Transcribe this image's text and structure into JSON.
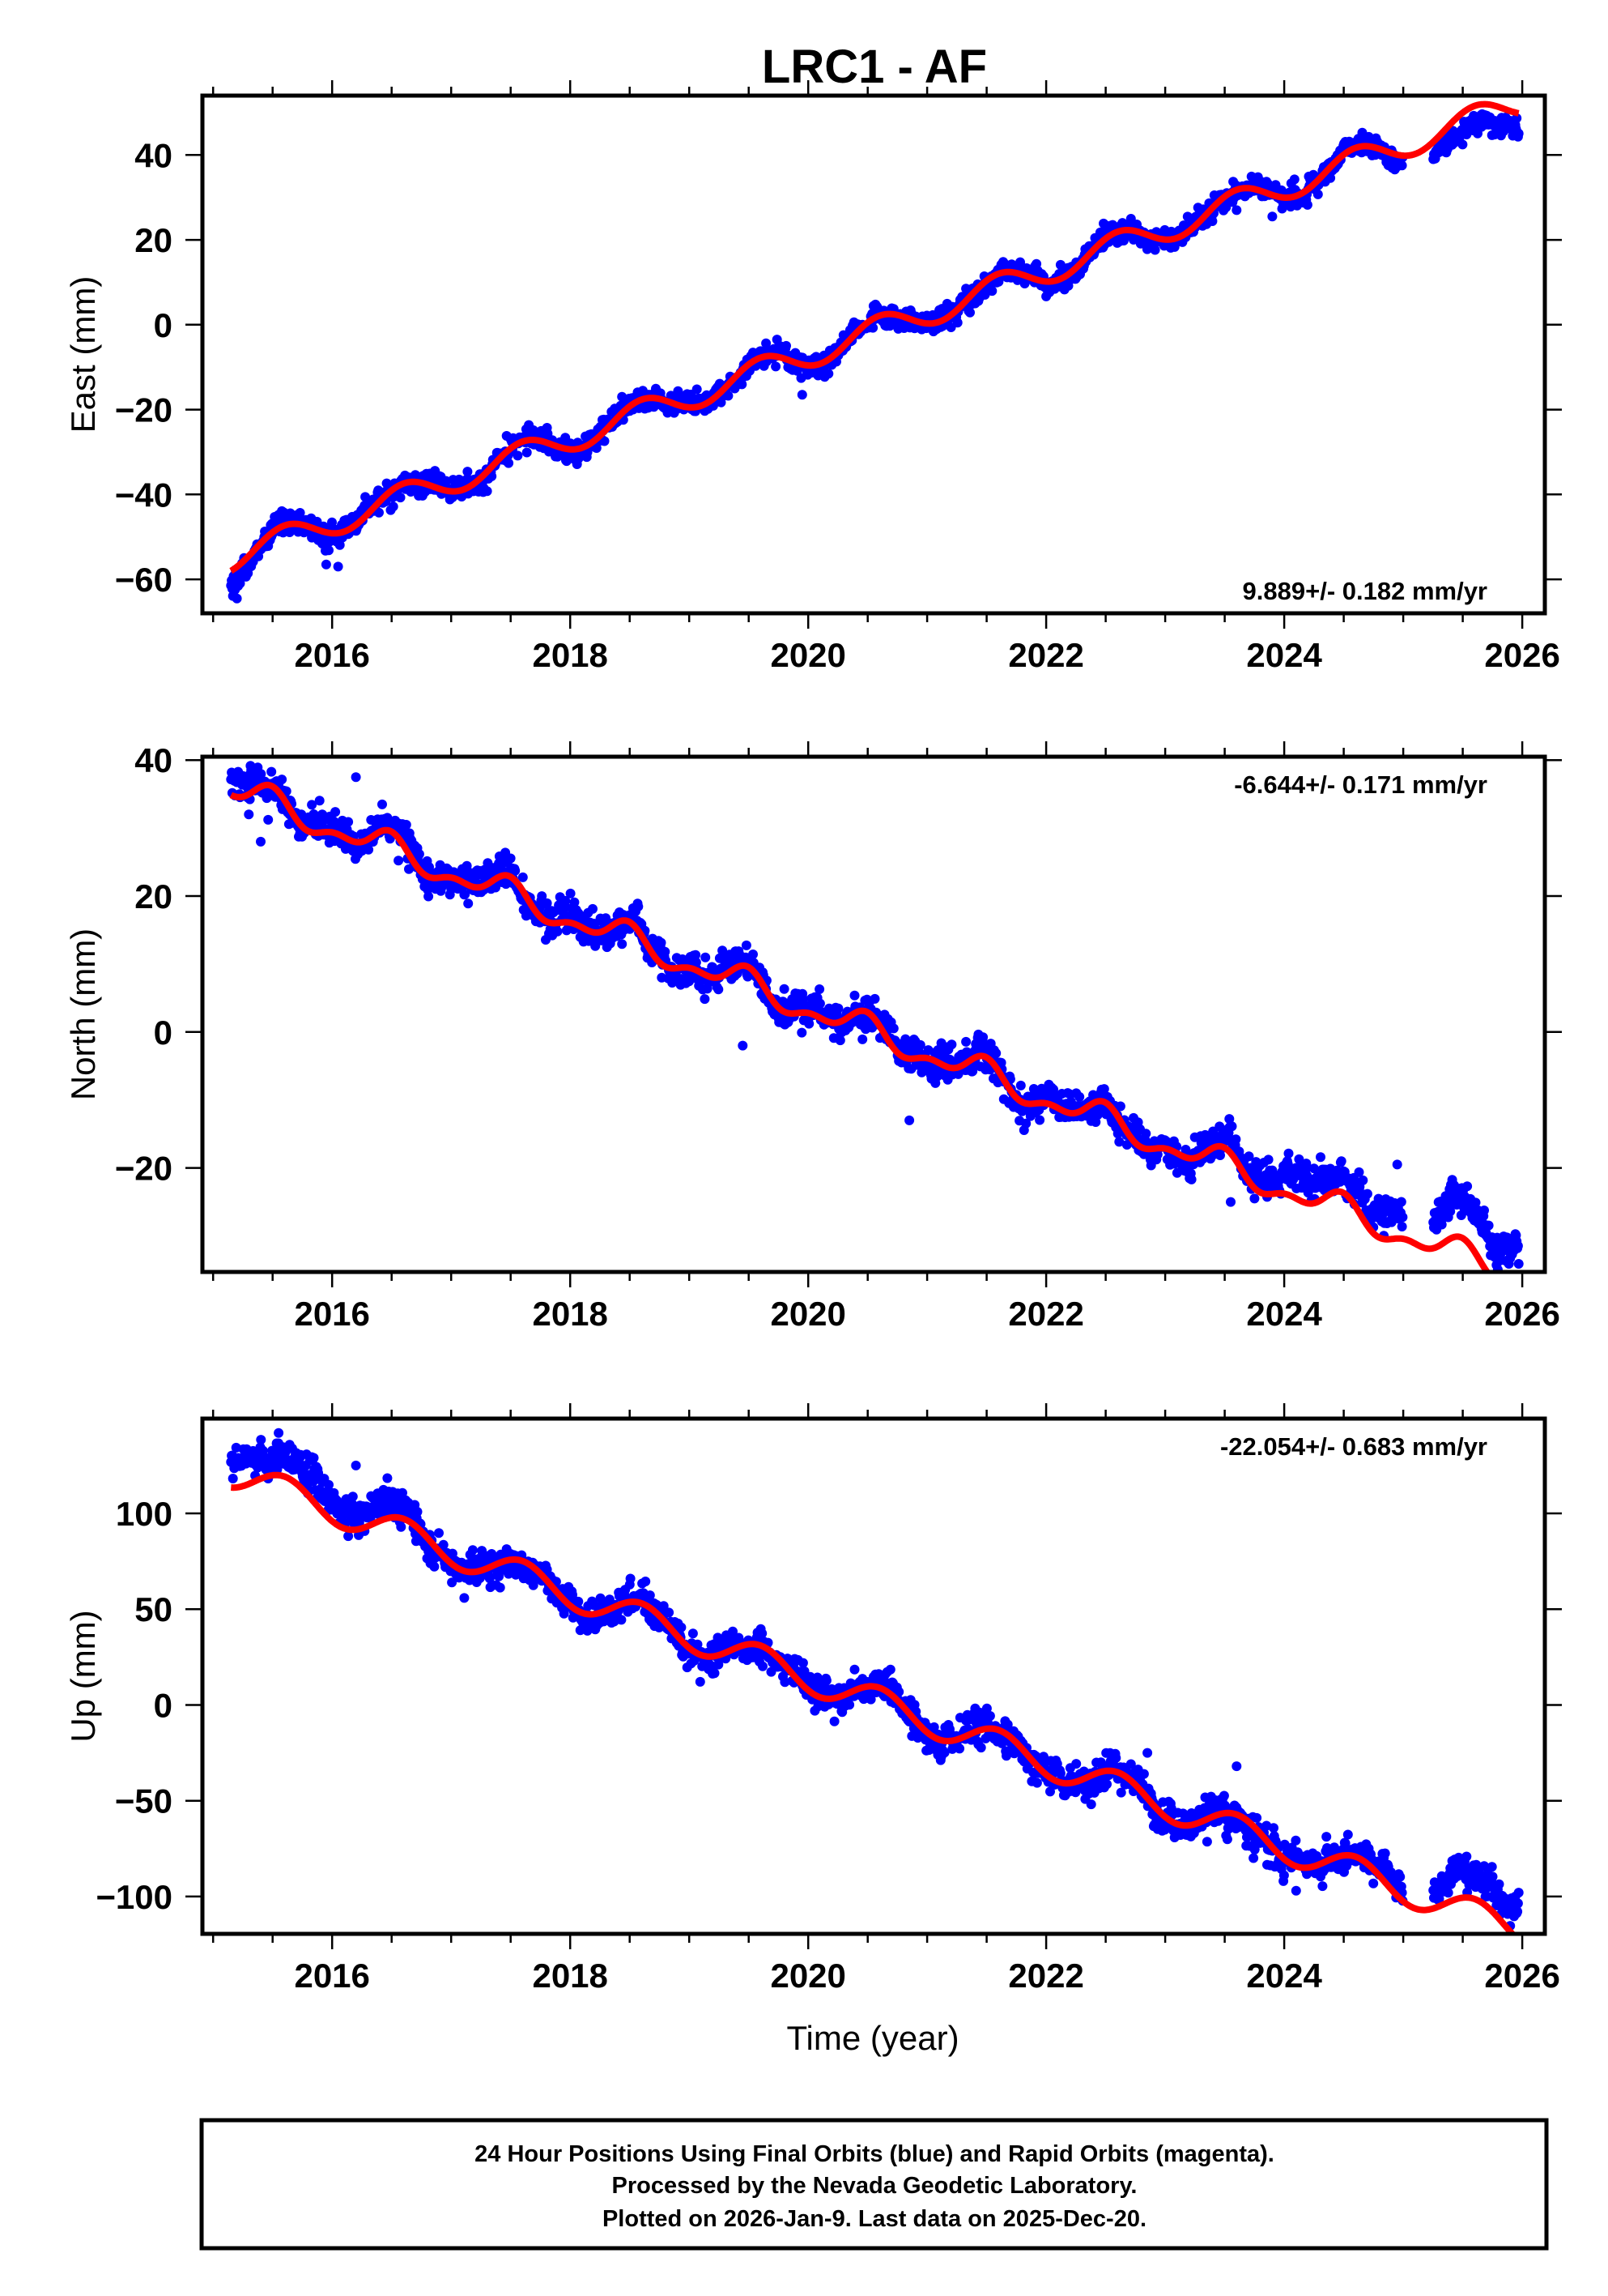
{
  "title": "LRC1 - AF",
  "xlabel": "Time (year)",
  "footer": {
    "lines": [
      "24 Hour Positions Using Final Orbits (blue) and Rapid Orbits (magenta).",
      "Processed by the Nevada Geodetic Laboratory.",
      "Plotted on 2026-Jan-9. Last data on 2025-Dec-20."
    ]
  },
  "colors": {
    "final_orbits": "#0000ff",
    "model_fit": "#ff0000",
    "frame": "#000000",
    "background": "#ffffff"
  },
  "chart_data": [
    {
      "type": "scatter",
      "component": "east",
      "title": "LRC1 - AF",
      "xlabel": "",
      "ylabel": "East (mm)",
      "xlim": [
        2014.91,
        2026.19
      ],
      "ylim": [
        -68,
        54
      ],
      "xticks": [
        2016,
        2018,
        2020,
        2022,
        2024,
        2026
      ],
      "xtick_labels": [
        "2016",
        "2018",
        "2020",
        "2022",
        "2024",
        "2026"
      ],
      "xminor_step": 0.5,
      "yticks": [
        -60,
        -40,
        -20,
        0,
        20,
        40
      ],
      "ytick_labels": [
        "−60",
        "−40",
        "−20",
        "0",
        "20",
        "40"
      ],
      "grid": false,
      "legend": "none",
      "rate": 9.889,
      "rate_sigma": 0.182,
      "rate_label": "9.889+/- 0.182 mm/yr",
      "rate_label_position": "bottom-right",
      "series": [
        {
          "name": "24 Hour Positions (Final Orbits)",
          "kind": "points",
          "color": "#0000ff",
          "start": 2015.15,
          "end": 2025.97,
          "gap": [
            2025.0,
            2025.25
          ],
          "step_days": 2,
          "noise_sd_mm": 1.3,
          "bias_vs_fit": [
            [
              2015.15,
              -2.5
            ],
            [
              2015.5,
              0
            ],
            [
              2024.9,
              0
            ],
            [
              2025.3,
              -3.5
            ],
            [
              2025.97,
              -4.5
            ]
          ],
          "outliers": [
            [
              2015.2,
              -64.5
            ],
            [
              2015.95,
              -56.5
            ],
            [
              2016.05,
              -57
            ],
            [
              2019.95,
              -16.5
            ],
            [
              2023.6,
              27
            ],
            [
              2023.9,
              25.5
            ]
          ]
        },
        {
          "name": "Model fit (trend + seasonal)",
          "kind": "line",
          "color": "#ff0000",
          "value_at_2020": -7,
          "annual_amp": 3.2,
          "annual_phase": 0.35,
          "semiannual_amp": 0,
          "semiannual_phase": 0
        }
      ]
    },
    {
      "type": "scatter",
      "component": "north",
      "title": "",
      "xlabel": "",
      "ylabel": "North (mm)",
      "xlim": [
        2014.91,
        2026.19
      ],
      "ylim": [
        -35.3,
        40.5
      ],
      "xticks": [
        2016,
        2018,
        2020,
        2022,
        2024,
        2026
      ],
      "xtick_labels": [
        "2016",
        "2018",
        "2020",
        "2022",
        "2024",
        "2026"
      ],
      "xminor_step": 0.5,
      "yticks": [
        -20,
        0,
        20,
        40
      ],
      "ytick_labels": [
        "−20",
        "0",
        "20",
        "40"
      ],
      "grid": false,
      "legend": "none",
      "rate": -6.644,
      "rate_sigma": 0.171,
      "rate_label": "-6.644+/- 0.171 mm/yr",
      "rate_label_position": "top-right",
      "series": [
        {
          "name": "24 Hour Positions (Final Orbits)",
          "kind": "points",
          "color": "#0000ff",
          "start": 2015.15,
          "end": 2025.97,
          "gap": [
            2025.0,
            2025.25
          ],
          "step_days": 2,
          "noise_sd_mm": 1.2,
          "bias_vs_fit": [
            [
              2015.15,
              1.8
            ],
            [
              2015.5,
              0.5
            ],
            [
              2023.3,
              0
            ],
            [
              2024.0,
              3
            ],
            [
              2024.5,
              2.5
            ],
            [
              2025.0,
              3.5
            ],
            [
              2025.3,
              5
            ],
            [
              2025.97,
              5.5
            ]
          ],
          "outliers": [
            [
              2015.3,
              32
            ],
            [
              2015.4,
              28
            ],
            [
              2016.2,
              37.5
            ],
            [
              2019.45,
              -2
            ],
            [
              2020.85,
              -13
            ],
            [
              2023.55,
              -25
            ],
            [
              2023.75,
              -24.5
            ],
            [
              2024.5,
              -20.5
            ],
            [
              2024.95,
              -19.5
            ]
          ]
        },
        {
          "name": "Model fit (trend + seasonal)",
          "kind": "line",
          "color": "#ff0000",
          "value_at_2020": 3.5,
          "annual_amp": 1.8,
          "annual_phase": 0.2,
          "semiannual_amp": 1.0,
          "semiannual_phase": 0.375
        }
      ]
    },
    {
      "type": "scatter",
      "component": "up",
      "title": "",
      "xlabel": "Time (year)",
      "ylabel": "Up (mm)",
      "xlim": [
        2014.91,
        2026.19
      ],
      "ylim": [
        -119.5,
        149.5
      ],
      "xticks": [
        2016,
        2018,
        2020,
        2022,
        2024,
        2026
      ],
      "xtick_labels": [
        "2016",
        "2018",
        "2020",
        "2022",
        "2024",
        "2026"
      ],
      "xminor_step": 0.5,
      "yticks": [
        -100,
        -50,
        0,
        50,
        100
      ],
      "ytick_labels": [
        "−100",
        "−50",
        "0",
        "50",
        "100"
      ],
      "grid": false,
      "legend": "none",
      "rate": -22.054,
      "rate_sigma": 0.683,
      "rate_label": "-22.054+/- 0.683 mm/yr",
      "rate_label_position": "top-right",
      "series": [
        {
          "name": "24 Hour Positions (Final Orbits)",
          "kind": "points",
          "color": "#0000ff",
          "start": 2015.15,
          "end": 2025.97,
          "gap": [
            2025.0,
            2025.25
          ],
          "step_days": 2,
          "noise_sd_mm": 4.2,
          "bias_vs_fit": [
            [
              2015.15,
              12
            ],
            [
              2016.3,
              10
            ],
            [
              2016.8,
              0
            ],
            [
              2024.0,
              0
            ],
            [
              2024.9,
              3
            ],
            [
              2025.3,
              10
            ],
            [
              2025.97,
              15
            ]
          ],
          "outliers": [
            [
              2015.55,
              142
            ],
            [
              2022.85,
              -25
            ],
            [
              2023.6,
              -32
            ],
            [
              2024.1,
              -97
            ],
            [
              2016.2,
              125
            ]
          ]
        },
        {
          "name": "Model fit (trend + seasonal)",
          "kind": "line",
          "color": "#ff0000",
          "value_at_2020": 14.2,
          "annual_amp": 8,
          "annual_phase": 0.35,
          "semiannual_amp": 0,
          "semiannual_phase": 0
        }
      ]
    }
  ]
}
